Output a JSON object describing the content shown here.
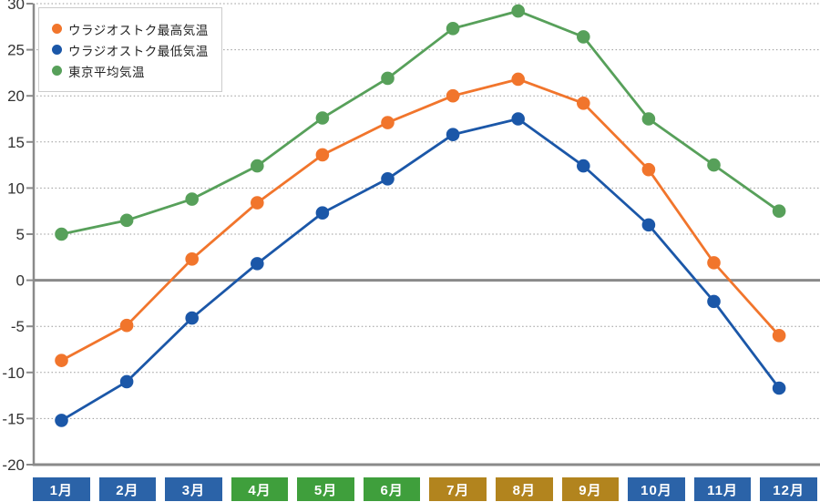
{
  "chart_data": {
    "type": "line",
    "title": "",
    "xlabel": "",
    "ylabel": "",
    "categories": [
      "1月",
      "2月",
      "3月",
      "4月",
      "5月",
      "6月",
      "7月",
      "8月",
      "9月",
      "10月",
      "11月",
      "12月"
    ],
    "series": [
      {
        "name": "ウラジオストク最高気温",
        "color": "#f1752c",
        "values": [
          -8.7,
          -4.9,
          2.3,
          8.4,
          13.6,
          17.1,
          20.0,
          21.8,
          19.2,
          12.0,
          1.9,
          -6.0
        ]
      },
      {
        "name": "ウラジオストク最低気温",
        "color": "#1b57a8",
        "values": [
          -15.2,
          -11.0,
          -4.1,
          1.8,
          7.3,
          11.0,
          15.8,
          17.5,
          12.4,
          6.0,
          -2.3,
          -11.7
        ]
      },
      {
        "name": "東京平均気温",
        "color": "#57a05a",
        "values": [
          5.0,
          6.5,
          8.8,
          12.4,
          17.6,
          21.9,
          27.3,
          29.2,
          26.4,
          17.5,
          12.5,
          7.5
        ]
      }
    ],
    "ylim": [
      -20,
      30
    ],
    "yticks": [
      30,
      25,
      20,
      15,
      10,
      5,
      0,
      -5,
      -10,
      -15,
      -20
    ],
    "grid": "horizontal-dotted",
    "zero_line": "solid",
    "legend_position": "top-left",
    "category_band_colors": [
      "#2b63a8",
      "#2b63a8",
      "#2b63a8",
      "#3f9f3c",
      "#3f9f3c",
      "#3f9f3c",
      "#b2841e",
      "#b2841e",
      "#b2841e",
      "#2b63a8",
      "#2b63a8",
      "#2b63a8"
    ]
  },
  "colors": {
    "axis": "#8a8a8a",
    "grid": "#999999",
    "tick_label": "#333333",
    "month_text": "#ffffff",
    "legend_border": "#cccccc",
    "legend_bg": "#ffffff"
  }
}
